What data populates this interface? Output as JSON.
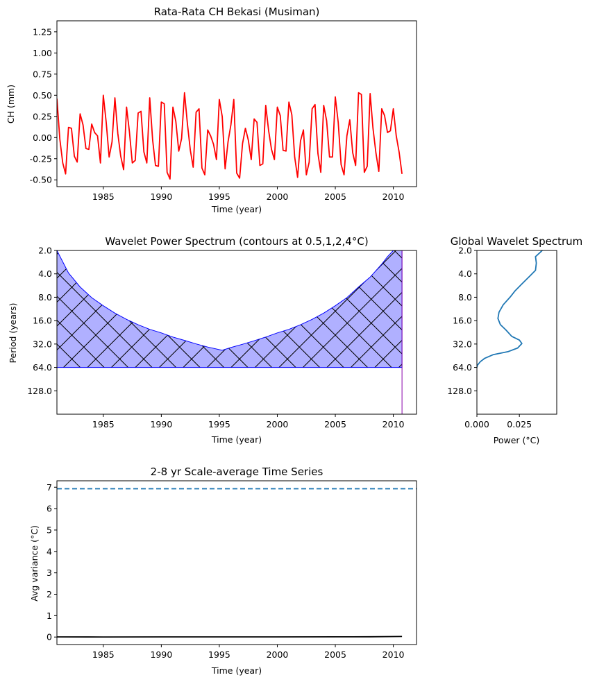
{
  "chart_data": [
    {
      "type": "line",
      "title": "Rata-Rata CH Bekasi (Musiman)",
      "xlabel": "Time (year)",
      "ylabel": "CH (mm)",
      "xlim": [
        1981,
        2012
      ],
      "ylim": [
        -0.58,
        1.38
      ],
      "xticks": [
        1985,
        1990,
        1995,
        2000,
        2005,
        2010
      ],
      "yticks": [
        "-0.50",
        "-0.25",
        "0.00",
        "0.25",
        "0.50",
        "0.75",
        "1.00",
        "1.25"
      ],
      "ytick_values": [
        -0.5,
        -0.25,
        0,
        0.25,
        0.5,
        0.75,
        1.0,
        1.25
      ],
      "series": [
        {
          "color": "#ff0000",
          "x": [
            1981.0,
            1981.25,
            1981.5,
            1981.75,
            1982.0,
            1982.25,
            1982.5,
            1982.75,
            1983.0,
            1983.25,
            1983.5,
            1983.75,
            1984.0,
            1984.25,
            1984.5,
            1984.75,
            1985.0,
            1985.25,
            1985.5,
            1985.75,
            1986.0,
            1986.25,
            1986.5,
            1986.75,
            1987.0,
            1987.25,
            1987.5,
            1987.75,
            1988.0,
            1988.25,
            1988.5,
            1988.75,
            1989.0,
            1989.25,
            1989.5,
            1989.75,
            1990.0,
            1990.25,
            1990.5,
            1990.75,
            1991.0,
            1991.25,
            1991.5,
            1991.75,
            1992.0,
            1992.25,
            1992.5,
            1992.75,
            1993.0,
            1993.25,
            1993.5,
            1993.75,
            1994.0,
            1994.25,
            1994.5,
            1994.75,
            1995.0,
            1995.25,
            1995.5,
            1995.75,
            1996.0,
            1996.25,
            1996.5,
            1996.75,
            1997.0,
            1997.25,
            1997.5,
            1997.75,
            1998.0,
            1998.25,
            1998.5,
            1998.75,
            1999.0,
            1999.25,
            1999.5,
            1999.75,
            2000.0,
            2000.25,
            2000.5,
            2000.75,
            2001.0,
            2001.25,
            2001.5,
            2001.75,
            2002.0,
            2002.25,
            2002.5,
            2002.75,
            2003.0,
            2003.25,
            2003.5,
            2003.75,
            2004.0,
            2004.25,
            2004.5,
            2004.75,
            2005.0,
            2005.25,
            2005.5,
            2005.75,
            2006.0,
            2006.25,
            2006.5,
            2006.75,
            2007.0,
            2007.25,
            2007.5,
            2007.75,
            2008.0,
            2008.25,
            2008.5,
            2008.75,
            2009.0,
            2009.25,
            2009.5,
            2009.75,
            2010.0,
            2010.25,
            2010.5,
            2010.75
          ],
          "y": [
            0.46,
            -0.02,
            -0.3,
            -0.43,
            0.12,
            0.11,
            -0.22,
            -0.29,
            0.28,
            0.15,
            -0.13,
            -0.14,
            0.16,
            0.06,
            0.02,
            -0.3,
            0.5,
            0.18,
            -0.23,
            -0.05,
            0.47,
            0.05,
            -0.22,
            -0.38,
            0.36,
            0.07,
            -0.3,
            -0.27,
            0.29,
            0.31,
            -0.17,
            -0.3,
            0.47,
            -0.03,
            -0.33,
            -0.34,
            0.42,
            0.4,
            -0.41,
            -0.49,
            0.36,
            0.19,
            -0.16,
            -0.01,
            0.53,
            0.16,
            -0.15,
            -0.35,
            0.3,
            0.34,
            -0.36,
            -0.44,
            0.09,
            0.02,
            -0.08,
            -0.26,
            0.45,
            0.25,
            -0.37,
            -0.05,
            0.15,
            0.45,
            -0.42,
            -0.48,
            -0.07,
            0.11,
            -0.03,
            -0.26,
            0.22,
            0.18,
            -0.33,
            -0.31,
            0.38,
            0.08,
            -0.14,
            -0.26,
            0.36,
            0.26,
            -0.15,
            -0.16,
            0.42,
            0.27,
            -0.23,
            -0.47,
            -0.04,
            0.09,
            -0.44,
            -0.29,
            0.34,
            0.39,
            -0.19,
            -0.41,
            0.38,
            0.2,
            -0.23,
            -0.23,
            0.48,
            0.18,
            -0.32,
            -0.44,
            0.02,
            0.21,
            -0.18,
            -0.33,
            0.53,
            0.51,
            -0.41,
            -0.34,
            0.52,
            0.11,
            -0.18,
            -0.4,
            0.34,
            0.26,
            0.06,
            0.08,
            0.34,
            0.02,
            -0.17,
            -0.43
          ]
        }
      ]
    },
    {
      "type": "heatmap",
      "title": "Wavelet Power Spectrum (contours at 0.5,1,2,4°C)",
      "xlabel": "Time (year)",
      "ylabel": "Period (years)",
      "xlim": [
        1981,
        2012
      ],
      "ylim": [
        2,
        256
      ],
      "y_scale": "log2 (reversed)",
      "xticks": [
        1985,
        1990,
        1995,
        2000,
        2005,
        2010
      ],
      "yticks": [
        "2.0",
        "4.0",
        "8.0",
        "16.0",
        "32.0",
        "64.0",
        "128.0"
      ],
      "ytick_values": [
        2,
        4,
        8,
        16,
        32,
        64,
        128
      ],
      "cone_of_influence": {
        "fill": "#b0b0ff",
        "edge": "#0000ff",
        "hatch": "x",
        "period_floor": 64,
        "time_end": 2010.75,
        "x": [
          1981.0,
          1981.5,
          1982.0,
          1983.0,
          1984.0,
          1985.0,
          1986.0,
          1987.0,
          1988.0,
          1989.0,
          1990.0,
          1991.0,
          1992.0,
          1993.0,
          1994.0,
          1995.25,
          1996.0,
          1997.0,
          1998.0,
          1999.0,
          2000.0,
          2001.0,
          2002.0,
          2003.0,
          2004.0,
          2005.0,
          2006.0,
          2007.0,
          2008.0,
          2009.0,
          2009.5,
          2010.0,
          2010.5,
          2010.75
        ],
        "period": [
          2.0,
          2.8,
          3.9,
          5.9,
          8.1,
          10.3,
          12.8,
          15.4,
          18.1,
          20.7,
          23.0,
          26.0,
          28.7,
          31.9,
          35.0,
          38.5,
          35.5,
          32.2,
          29.1,
          26.0,
          23.0,
          20.7,
          18.1,
          15.4,
          12.8,
          10.3,
          8.1,
          5.9,
          4.4,
          3.0,
          2.4,
          2.0,
          1.7,
          1.4
        ]
      }
    },
    {
      "type": "line",
      "title": "Global Wavelet Spectrum",
      "xlabel": "Power (°C)",
      "ylabel": "",
      "xlim": [
        0,
        0.047
      ],
      "ylim": [
        2,
        256
      ],
      "y_scale": "log2 (reversed)",
      "xticks": [
        "0.000",
        "0.025"
      ],
      "xtick_values": [
        0,
        0.025
      ],
      "yticks": [
        "2.0",
        "4.0",
        "8.0",
        "16.0",
        "32.0",
        "64.0",
        "128.0"
      ],
      "ytick_values": [
        2,
        4,
        8,
        16,
        32,
        64,
        128
      ],
      "series": [
        {
          "color": "#1f77b4",
          "power": [
            0.0385,
            0.0345,
            0.035,
            0.0345,
            0.031,
            0.0265,
            0.0225,
            0.0195,
            0.0155,
            0.013,
            0.0124,
            0.0138,
            0.017,
            0.0205,
            0.025,
            0.0265,
            0.024,
            0.0185,
            0.0095,
            0.0045,
            0.002,
            0.0003,
            0.0
          ],
          "period": [
            2.0,
            2.4,
            2.9,
            3.6,
            4.3,
            5.4,
            6.6,
            8.0,
            10.0,
            12.5,
            15.0,
            18.0,
            21.0,
            25.5,
            28.5,
            31.5,
            36.0,
            40.0,
            44.0,
            49.0,
            54.0,
            60.0,
            64.0
          ]
        }
      ]
    },
    {
      "type": "line",
      "title": "2-8 yr Scale-average Time Series",
      "xlabel": "Time (year)",
      "ylabel": "Avg variance (°C)",
      "xlim": [
        1981,
        2012
      ],
      "ylim": [
        -0.35,
        7.3
      ],
      "xticks": [
        1985,
        1990,
        1995,
        2000,
        2005,
        2010
      ],
      "yticks": [
        "0",
        "1",
        "2",
        "3",
        "4",
        "5",
        "6",
        "7"
      ],
      "ytick_values": [
        0,
        1,
        2,
        3,
        4,
        5,
        6,
        7
      ],
      "significance_level": 6.93,
      "significance_color": "#1f77b4",
      "series": [
        {
          "color": "#000000",
          "x": [
            1981.0,
            1985.0,
            1990.0,
            1995.0,
            2000.0,
            2005.0,
            2008.0,
            2010.75
          ],
          "y": [
            0.005,
            0.004,
            0.006,
            0.008,
            0.006,
            0.009,
            0.012,
            0.025
          ]
        }
      ]
    }
  ]
}
